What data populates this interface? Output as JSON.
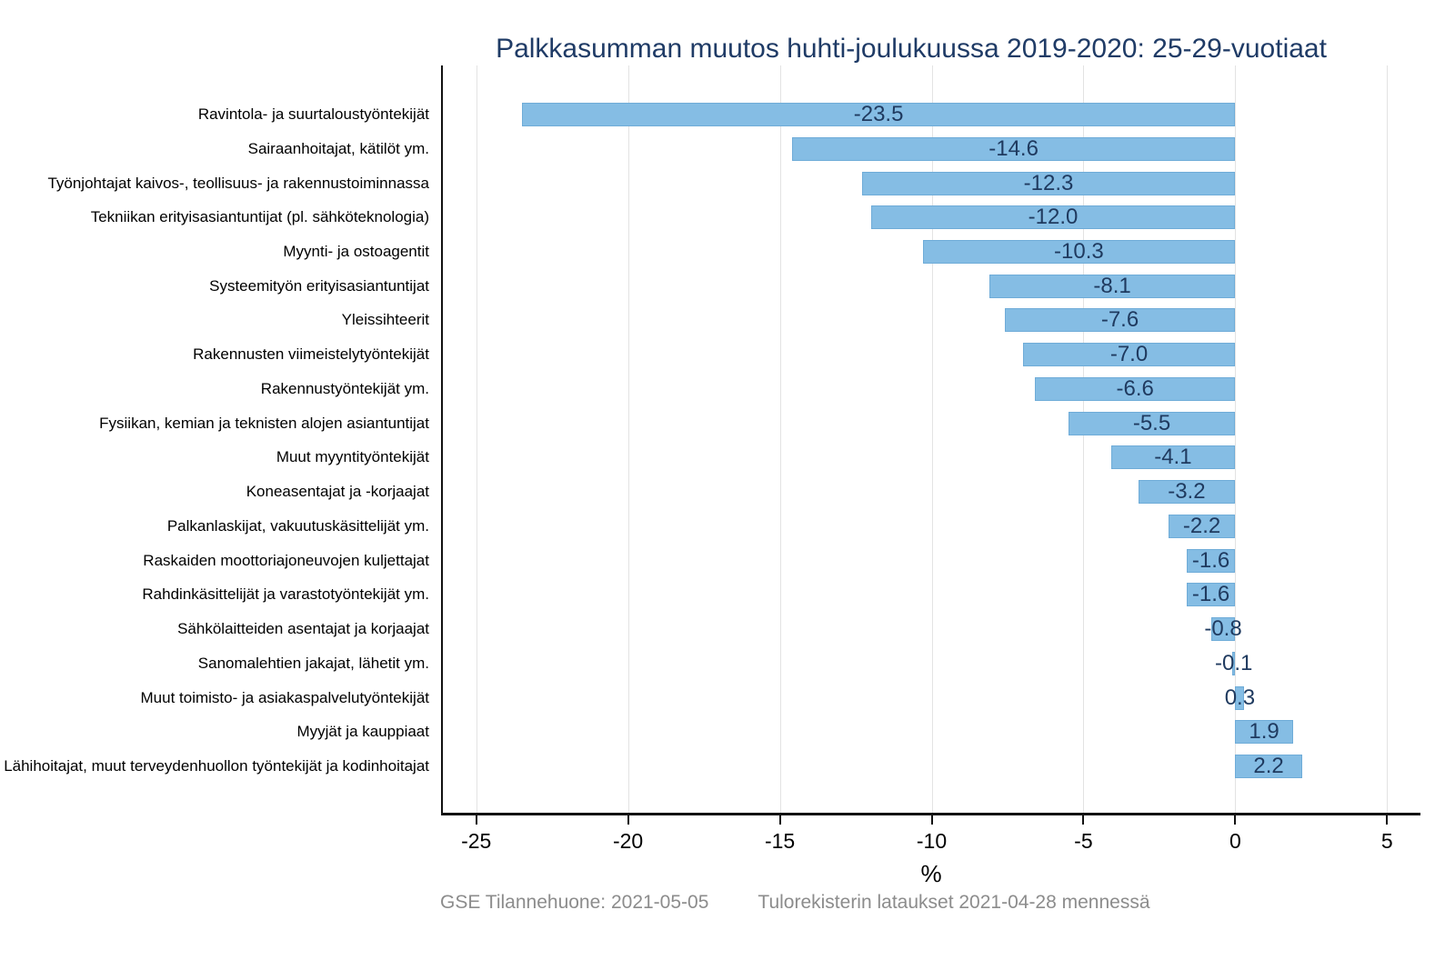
{
  "chart_data": {
    "type": "bar",
    "orientation": "horizontal",
    "title": "Palkkasumman muutos huhti-joulukuussa 2019-2020: 25-29-vuotiaat",
    "xlabel": "%",
    "categories": [
      "Ravintola- ja suurtaloustyöntekijät",
      "Sairaanhoitajat, kätilöt ym.",
      "Työnjohtajat kaivos-, teollisuus- ja rakennustoiminnassa",
      "Tekniikan erityisasiantuntijat (pl. sähköteknologia)",
      "Myynti- ja ostoagentit",
      "Systeemityön erityisasiantuntijat",
      "Yleissihteerit",
      "Rakennusten viimeistelytyöntekijät",
      "Rakennustyöntekijät ym.",
      "Fysiikan, kemian ja teknisten alojen asiantuntijat",
      "Muut myyntityöntekijät",
      "Koneasentajat ja -korjaajat",
      "Palkanlaskijat, vakuutuskäsittelijät ym.",
      "Raskaiden moottoriajoneuvojen kuljettajat",
      "Rahdinkäsittelijät ja varastotyöntekijät ym.",
      "Sähkölaitteiden asentajat ja korjaajat",
      "Sanomalehtien jakajat, lähetit ym.",
      "Muut toimisto- ja asiakaspalvelutyöntekijät",
      "Myyjät ja kauppiaat",
      "Lähihoitajat, muut terveydenhuollon työntekijät ja kodinhoitajat"
    ],
    "values": [
      -23.5,
      -14.6,
      -12.3,
      -12.0,
      -10.3,
      -8.1,
      -7.6,
      -7.0,
      -6.6,
      -5.5,
      -4.1,
      -3.2,
      -2.2,
      -1.6,
      -1.6,
      -0.8,
      -0.1,
      0.3,
      1.9,
      2.2
    ],
    "xlim": [
      -26.1,
      6.1
    ],
    "xticks": [
      -25,
      -20,
      -15,
      -10,
      -5,
      0,
      5
    ],
    "grid": "vertical-gridlines-on",
    "legend": "none",
    "colors": {
      "bar_fill": "#85BDE4",
      "bar_border": "#6FAcd8",
      "value_label": "#1F3A5F",
      "title": "#1F3B66",
      "gridline": "#E3E3E3",
      "axis": "#111111",
      "footer_text": "#8C8C8C"
    }
  },
  "footer": {
    "left": "GSE Tilannehuone: 2021-05-05",
    "right": "Tulorekisterin lataukset 2021-04-28 mennessä"
  }
}
